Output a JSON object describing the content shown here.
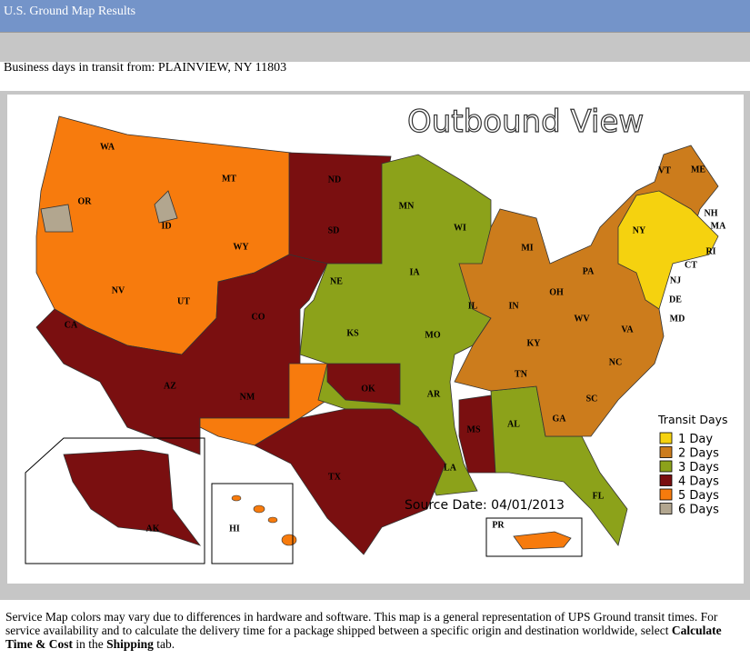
{
  "header": {
    "title": "U.S. Ground Map Results"
  },
  "origin_line": "Business days in transit from: PLAINVIEW, NY 11803",
  "map": {
    "title": "Outbound View",
    "source_date": "Source Date: 04/01/2013",
    "legend": {
      "title": "Transit Days",
      "items": [
        {
          "label": "1 Day",
          "color": "#f5d20f"
        },
        {
          "label": "2 Days",
          "color": "#cc7c1c"
        },
        {
          "label": "3 Days",
          "color": "#8ca21a"
        },
        {
          "label": "4 Days",
          "color": "#7a0f10"
        },
        {
          "label": "5 Days",
          "color": "#f77b0d"
        },
        {
          "label": "6 Days",
          "color": "#b2a68f"
        }
      ]
    },
    "states": [
      "WA",
      "OR",
      "ID",
      "MT",
      "WY",
      "NV",
      "UT",
      "CA",
      "AZ",
      "NM",
      "CO",
      "ND",
      "SD",
      "NE",
      "KS",
      "OK",
      "TX",
      "MN",
      "WI",
      "IA",
      "MO",
      "AR",
      "LA",
      "MS",
      "IL",
      "MI",
      "IN",
      "OH",
      "KY",
      "TN",
      "AL",
      "GA",
      "FL",
      "SC",
      "NC",
      "VA",
      "WV",
      "PA",
      "NY",
      "VT",
      "ME",
      "NH",
      "MA",
      "RI",
      "CT",
      "NJ",
      "DE",
      "MD",
      "AK",
      "HI",
      "PR"
    ]
  },
  "footer": {
    "text": "Service Map colors may vary due to differences in hardware and software. This map is a general representation of UPS Ground transit times. For service availability and to calculate the delivery time for a package shipped between a specific origin and destination worldwide, select ",
    "bold_1": "Calculate Time & Cost",
    "middle": " in the ",
    "bold_2": "Shipping",
    "end": " tab."
  }
}
